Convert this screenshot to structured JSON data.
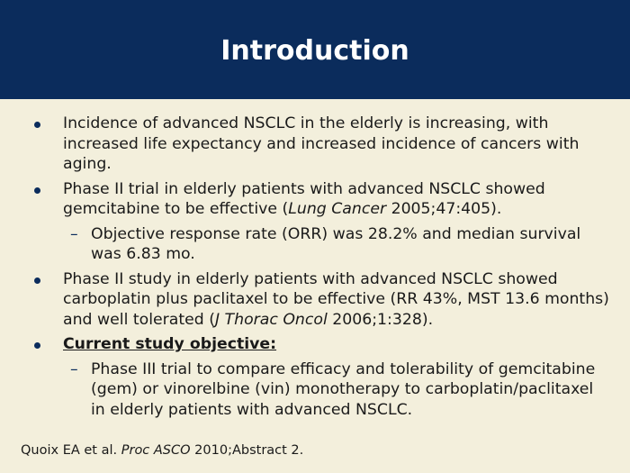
{
  "title": "Introduction",
  "bullets": [
    {
      "text": "Incidence of advanced NSCLC in the elderly is increasing, with increased life expectancy and increased incidence of cancers with aging."
    },
    {
      "pre": "Phase II trial in elderly patients with advanced NSCLC showed gemcitabine to be effective (",
      "italic": "Lung Cancer",
      "post": " 2005;47:405)."
    },
    {
      "sub": "Objective response rate (ORR) was 28.2% and median survival was 6.83 mo."
    },
    {
      "pre": "Phase II study in elderly patients with advanced NSCLC showed carboplatin plus paclitaxel to be effective (RR 43%, MST 13.6 months) and well tolerated (",
      "italic": "J Thorac Oncol",
      "post": " 2006;1:328)."
    },
    {
      "heading": "Current study objective:"
    },
    {
      "sub": "Phase III trial to compare efficacy and tolerability of gemcitabine (gem) or vinorelbine (vin) monotherapy to carboplatin/paclitaxel in elderly patients with advanced NSCLC."
    }
  ],
  "footer": {
    "pre": "Quoix EA et al. ",
    "italic": "Proc ASCO",
    "post": " 2010;Abstract 2."
  }
}
